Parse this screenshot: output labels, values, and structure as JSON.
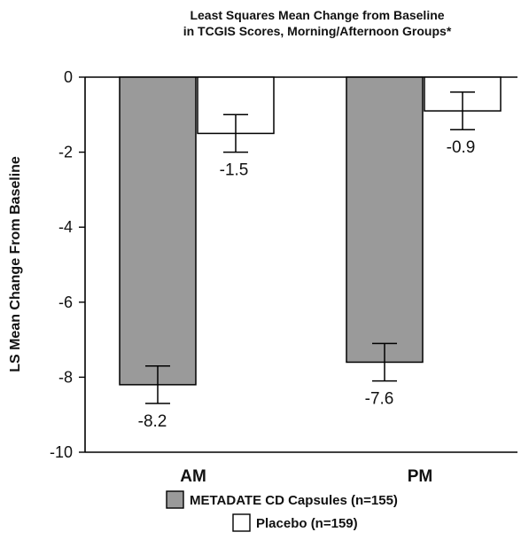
{
  "chart_data": {
    "type": "bar",
    "title": [
      "Least Squares Mean Change from Baseline",
      "in TCGIS Scores, Morning/Afternoon Groups*"
    ],
    "ylabel": "LS Mean Change From Baseline",
    "xlabel": "",
    "categories": [
      "AM",
      "PM"
    ],
    "ylim": [
      -10,
      0
    ],
    "yticks": [
      0,
      -2,
      -4,
      -6,
      -8,
      -10
    ],
    "grid": false,
    "legend_position": "bottom",
    "series": [
      {
        "name": "METADATE CD Capsules (n=155)",
        "color": "#9a9a9a",
        "values": [
          -8.2,
          -7.6
        ],
        "labels": [
          "-8.2",
          "-7.6"
        ],
        "error": [
          0.5,
          0.5
        ]
      },
      {
        "name": "Placebo (n=159)",
        "color": "#ffffff",
        "values": [
          -1.5,
          -0.9
        ],
        "labels": [
          "-1.5",
          "-0.9"
        ],
        "error": [
          0.5,
          0.5
        ]
      }
    ]
  }
}
